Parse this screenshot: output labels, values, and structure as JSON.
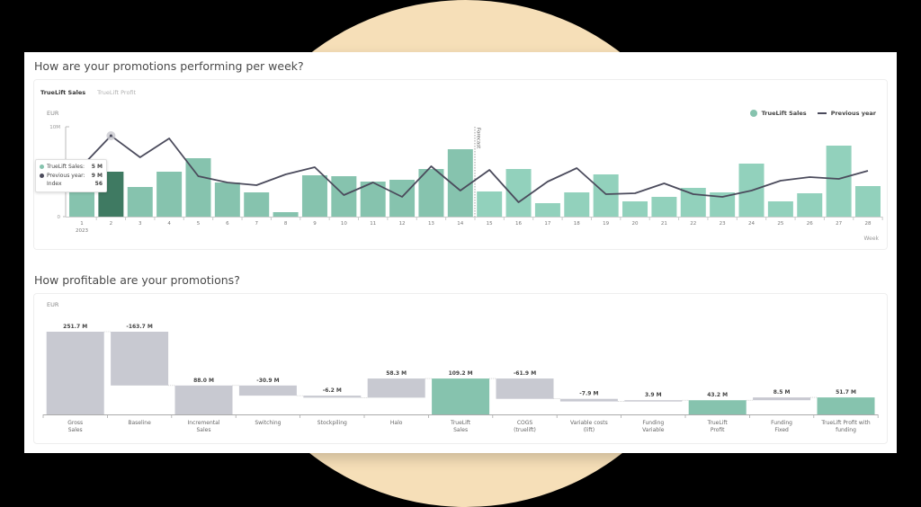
{
  "colors": {
    "background": "#000000",
    "accent_circle": "#f6dfb8",
    "bar_actual": "#86c3ae",
    "bar_forecast": "#92d1bc",
    "bar_selected": "#3f7a62",
    "line_previous_year": "#4b4b5c",
    "waterfall_grey": "#c8c9d1",
    "waterfall_green": "#86c3ae"
  },
  "section1": {
    "title": "How are your promotions performing per week?",
    "tabs": [
      {
        "label": "TrueLift Sales",
        "active": true
      },
      {
        "label": "TrueLift Profit",
        "active": false
      }
    ],
    "unit": "EUR",
    "legend": [
      {
        "label": "TrueLift Sales",
        "type": "dot"
      },
      {
        "label": "Previous year",
        "type": "line"
      }
    ],
    "tooltip": {
      "rows": [
        {
          "label": "TrueLift Sales:",
          "value": "5 M",
          "marker": "bar"
        },
        {
          "label": "Previous year:",
          "value": "9 M",
          "marker": "line"
        },
        {
          "label": "Index",
          "value": "56",
          "marker": "none"
        }
      ]
    },
    "forecast_label": "Forecast",
    "x_axis_title": "Week",
    "year_label": "2023"
  },
  "section2": {
    "title": "How profitable are your promotions?",
    "unit": "EUR"
  },
  "chart_data": [
    {
      "type": "bar",
      "title": "How are your promotions performing per week?",
      "xlabel": "Week",
      "ylabel": "EUR",
      "ylim": [
        0,
        10
      ],
      "y_ticks": [
        "0",
        "10M"
      ],
      "grid": false,
      "legend_position": "top-right",
      "categories": [
        "1",
        "2",
        "3",
        "4",
        "5",
        "6",
        "7",
        "8",
        "9",
        "10",
        "11",
        "12",
        "13",
        "14",
        "15",
        "16",
        "17",
        "18",
        "19",
        "20",
        "21",
        "22",
        "23",
        "24",
        "25",
        "26",
        "27",
        "28"
      ],
      "forecast_starts_at_week": 15,
      "selected_week": 2,
      "series": [
        {
          "name": "TrueLift Sales",
          "type": "bar",
          "unit": "M EUR",
          "values": [
            4.7,
            5.0,
            3.3,
            5.0,
            6.5,
            3.8,
            2.7,
            0.5,
            4.6,
            4.5,
            3.9,
            4.1,
            5.3,
            7.5,
            2.8,
            5.3,
            1.5,
            2.7,
            4.7,
            1.7,
            2.2,
            3.2,
            2.7,
            5.9,
            1.7,
            2.6,
            7.9,
            3.4
          ]
        },
        {
          "name": "Previous year",
          "type": "line",
          "unit": "M EUR",
          "values": [
            5.6,
            9.0,
            6.6,
            8.7,
            4.5,
            3.8,
            3.5,
            4.7,
            5.5,
            2.4,
            3.8,
            2.2,
            5.6,
            2.9,
            5.2,
            1.6,
            3.9,
            5.4,
            2.5,
            2.6,
            3.7,
            2.5,
            2.2,
            2.9,
            4.0,
            4.4,
            4.2,
            5.1
          ]
        }
      ]
    },
    {
      "type": "bar",
      "subtype": "waterfall",
      "title": "How profitable are your promotions?",
      "ylabel": "EUR",
      "grid": false,
      "categories": [
        "Gross Sales",
        "Baseline",
        "Incremental Sales",
        "Switching",
        "Stockpiling",
        "Halo",
        "TrueLift Sales",
        "COGS (truelift)",
        "Variable costs (lift)",
        "Funding Variable",
        "TrueLift Profit",
        "Funding Fixed",
        "TrueLift Profit with funding"
      ],
      "category_lines": [
        [
          "Gross",
          "Sales"
        ],
        [
          "Baseline"
        ],
        [
          "Incremental",
          "Sales"
        ],
        [
          "Switching"
        ],
        [
          "Stockpiling"
        ],
        [
          "Halo"
        ],
        [
          "TrueLift",
          "Sales"
        ],
        [
          "COGS",
          "(truelift)"
        ],
        [
          "Variable costs",
          "(lift)"
        ],
        [
          "Funding",
          "Variable"
        ],
        [
          "TrueLift",
          "Profit"
        ],
        [
          "Funding",
          "Fixed"
        ],
        [
          "TrueLift Profit with",
          "funding"
        ]
      ],
      "values": [
        251.7,
        -163.7,
        88.0,
        -30.9,
        -6.2,
        58.3,
        109.2,
        -61.9,
        -7.9,
        3.9,
        43.2,
        8.5,
        51.7
      ],
      "value_labels": [
        "251.7 M",
        "-163.7 M",
        "88.0 M",
        "-30.9 M",
        "-6.2 M",
        "58.3 M",
        "109.2 M",
        "-61.9 M",
        "-7.9 M",
        "3.9 M",
        "43.2 M",
        "8.5 M",
        "51.7 M"
      ],
      "bar_ranges": [
        [
          0,
          251.7
        ],
        [
          88.0,
          251.7
        ],
        [
          0,
          88.0
        ],
        [
          57.1,
          88.0
        ],
        [
          50.9,
          57.1
        ],
        [
          50.9,
          109.2
        ],
        [
          0,
          109.2
        ],
        [
          47.3,
          109.2
        ],
        [
          39.4,
          47.3
        ],
        [
          39.4,
          43.3
        ],
        [
          0,
          43.2
        ],
        [
          43.2,
          51.7
        ],
        [
          0,
          51.7
        ]
      ],
      "totals": [
        false,
        false,
        true,
        false,
        false,
        false,
        true,
        false,
        false,
        false,
        true,
        false,
        true
      ],
      "highlight": [
        false,
        false,
        false,
        false,
        false,
        false,
        true,
        false,
        false,
        false,
        true,
        false,
        true
      ]
    }
  ]
}
